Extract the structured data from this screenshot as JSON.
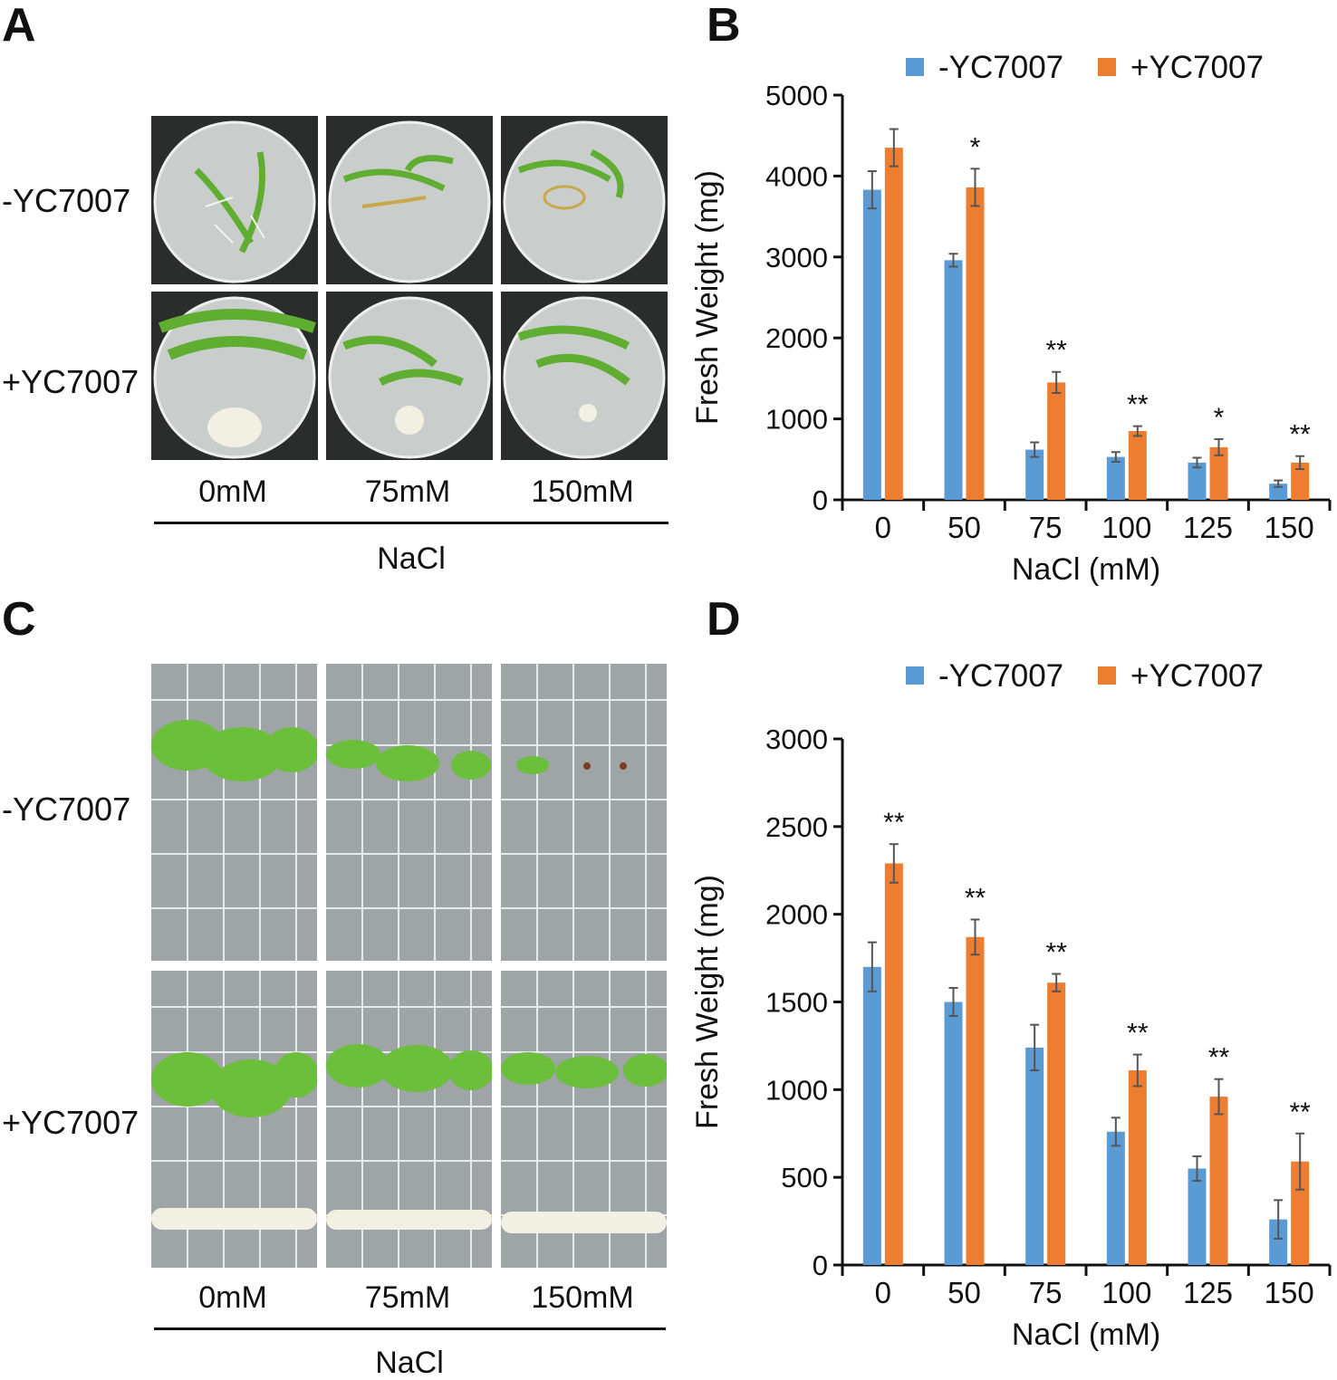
{
  "panels": {
    "a": {
      "letter": "A"
    },
    "b": {
      "letter": "B"
    },
    "c": {
      "letter": "C"
    },
    "d": {
      "letter": "D"
    }
  },
  "photo_panels": {
    "a": {
      "row_labels": [
        "-YC7007",
        "+YC7007"
      ],
      "col_labels": [
        "0mM",
        "75mM",
        "150mM"
      ],
      "axis_label": "NaCl"
    },
    "c": {
      "row_labels": [
        "-YC7007",
        "+YC7007"
      ],
      "col_labels": [
        "0mM",
        "75mM",
        "150mM"
      ],
      "axis_label": "NaCl"
    }
  },
  "colors": {
    "minus": "#5b9bd5",
    "plus": "#ed7d31",
    "plate_bg": "#cfd3d2",
    "plate_dark": "#2b2d2c",
    "grid_bg": "#9fa5a7",
    "leaf": "#6bbf3a",
    "colony": "#f2efe3"
  },
  "chart_data": [
    {
      "type": "bar",
      "panel": "B",
      "title": "",
      "categories": [
        "0",
        "50",
        "75",
        "100",
        "125",
        "150"
      ],
      "series": [
        {
          "name": "-YC7007",
          "values": [
            3830,
            2960,
            620,
            530,
            460,
            200
          ],
          "errors": [
            230,
            80,
            90,
            60,
            60,
            40
          ]
        },
        {
          "name": "+YC7007",
          "values": [
            4350,
            3860,
            1450,
            850,
            650,
            460
          ],
          "errors": [
            230,
            230,
            130,
            60,
            100,
            80
          ]
        }
      ],
      "significance": [
        "",
        "*",
        "**",
        "**",
        "*",
        "**"
      ],
      "xlabel": "NaCl (mM)",
      "ylabel": "Fresh Weight (mg)",
      "ylim": [
        0,
        5000
      ],
      "yticks": [
        "0",
        "1000",
        "2000",
        "3000",
        "4000",
        "5000"
      ],
      "legend": "top"
    },
    {
      "type": "bar",
      "panel": "D",
      "title": "",
      "categories": [
        "0",
        "50",
        "75",
        "100",
        "125",
        "150"
      ],
      "series": [
        {
          "name": "-YC7007",
          "values": [
            1700,
            1500,
            1240,
            760,
            550,
            260
          ],
          "errors": [
            140,
            80,
            130,
            80,
            70,
            110
          ]
        },
        {
          "name": "+YC7007",
          "values": [
            2290,
            1870,
            1610,
            1110,
            960,
            590
          ],
          "errors": [
            110,
            100,
            50,
            90,
            100,
            160
          ]
        }
      ],
      "significance": [
        "**",
        "**",
        "**",
        "**",
        "**",
        "**"
      ],
      "xlabel": "NaCl (mM)",
      "ylabel": "Fresh Weight (mg)",
      "ylim": [
        0,
        3000
      ],
      "yticks": [
        "0",
        "500",
        "1000",
        "1500",
        "2000",
        "2500",
        "3000"
      ],
      "legend": "top"
    }
  ]
}
